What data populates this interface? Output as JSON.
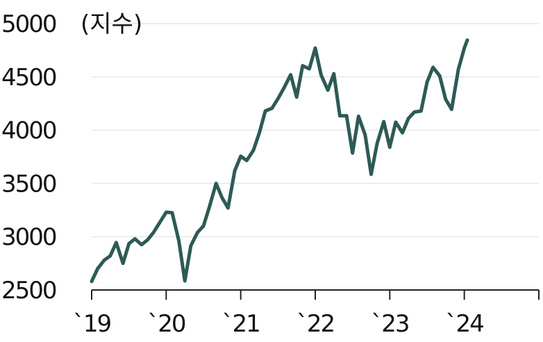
{
  "chart_data": {
    "type": "line",
    "unit_label": "(지수)",
    "y_ticks": [
      2500,
      3000,
      3500,
      4000,
      4500,
      5000
    ],
    "y_tick_labels": [
      "2500",
      "3000",
      "3500",
      "4000",
      "4500",
      "5000"
    ],
    "x_ticks": [
      2019,
      2020,
      2021,
      2022,
      2023,
      2024
    ],
    "x_tick_labels": [
      "`19",
      "`20",
      "`21",
      "`22",
      "`23",
      "`24"
    ],
    "ylim": [
      2500,
      5000
    ],
    "xlim": [
      2019,
      2025
    ],
    "grid": "horizontal",
    "line_color": "#2e5a55",
    "series": [
      {
        "x": [
          2019.0,
          2019.08,
          2019.17,
          2019.25,
          2019.33,
          2019.42,
          2019.5,
          2019.58,
          2019.67,
          2019.75,
          2019.83,
          2019.92,
          2020.0,
          2020.08,
          2020.17,
          2020.25,
          2020.33,
          2020.42,
          2020.5,
          2020.58,
          2020.67,
          2020.75,
          2020.83,
          2020.92,
          2021.0,
          2021.08,
          2021.17,
          2021.25,
          2021.33,
          2021.42,
          2021.5,
          2021.58,
          2021.67,
          2021.75,
          2021.83,
          2021.92,
          2022.0,
          2022.08,
          2022.17,
          2022.25,
          2022.33,
          2022.42,
          2022.5,
          2022.58,
          2022.67,
          2022.75,
          2022.83,
          2022.92,
          2023.0,
          2023.08,
          2023.17,
          2023.25,
          2023.33,
          2023.42,
          2023.5,
          2023.58,
          2023.67,
          2023.75,
          2023.83,
          2023.92,
          2024.0,
          2024.04
        ],
        "values": [
          2580,
          2700,
          2780,
          2820,
          2945,
          2750,
          2935,
          2980,
          2925,
          2970,
          3040,
          3140,
          3230,
          3225,
          2960,
          2585,
          2915,
          3040,
          3100,
          3280,
          3500,
          3365,
          3270,
          3620,
          3755,
          3715,
          3810,
          3975,
          4180,
          4205,
          4295,
          4395,
          4520,
          4310,
          4605,
          4575,
          4770,
          4515,
          4375,
          4530,
          4135,
          4135,
          3785,
          4130,
          3955,
          3585,
          3875,
          4080,
          3840,
          4075,
          3975,
          4110,
          4170,
          4180,
          4450,
          4590,
          4510,
          4290,
          4195,
          4570,
          4770,
          4845
        ]
      }
    ]
  }
}
